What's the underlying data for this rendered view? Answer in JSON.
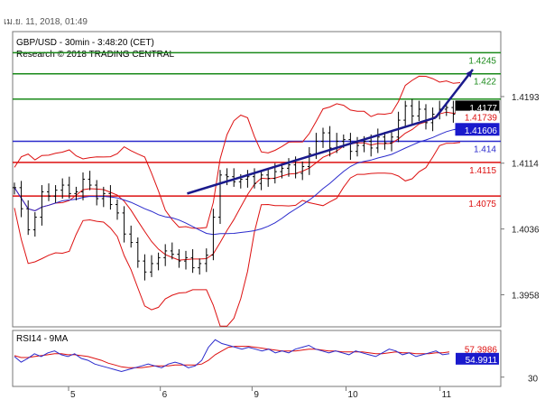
{
  "header": {
    "date_text": "เม.ย. 11, 2018, 01:49"
  },
  "chart_data": {
    "type": "line",
    "title": "GBP/USD - 30min - 3:48:20 (CET)",
    "subtitle": "Research © 2018 TRADING CENTRAL",
    "price_panel": {
      "ylim": [
        1.392,
        1.427
      ],
      "y_ticks": [
        "1.4193",
        "1.4114",
        "1.4036",
        "1.3958"
      ],
      "y_tick_values": [
        1.4193,
        1.4114,
        1.4036,
        1.3958
      ],
      "levels": [
        {
          "value": 1.4245,
          "label": "1.4245",
          "color": "#1a8a1a"
        },
        {
          "value": 1.422,
          "label": "1.422",
          "color": "#1a8a1a"
        },
        {
          "value": 1.419,
          "label": "1.419",
          "color": "#1a8a1a"
        },
        {
          "value": 1.414,
          "label": "1.414",
          "color": "#2a2acc"
        },
        {
          "value": 1.4115,
          "label": "1.4115",
          "color": "#dd1111"
        },
        {
          "value": 1.4075,
          "label": "1.4075",
          "color": "#dd1111"
        }
      ],
      "price_badges": [
        {
          "value": 1.4177,
          "label": "1.4177",
          "bg": "#000000",
          "fg": "#ffffff"
        },
        {
          "value": 1.4173,
          "label": "1.41739",
          "bg": "#ffffff",
          "fg": "#dd1111"
        },
        {
          "value": 1.416,
          "label": "1.41606",
          "bg": "#1a1acc",
          "fg": "#ffffff"
        }
      ],
      "close_series": [
        1.4085,
        1.406,
        1.4035,
        1.405,
        1.408,
        1.4075,
        1.4082,
        1.4088,
        1.4078,
        1.408,
        1.4095,
        1.4088,
        1.4072,
        1.4078,
        1.4065,
        1.4055,
        1.403,
        1.402,
        1.3998,
        1.3985,
        1.3995,
        1.4002,
        1.401,
        1.4006,
        1.3998,
        1.4002,
        1.399,
        1.3995,
        1.4005,
        1.405,
        1.41,
        1.4098,
        1.4092,
        1.4095,
        1.4098,
        1.409,
        1.41,
        1.4096,
        1.4104,
        1.4108,
        1.4112,
        1.4102,
        1.411,
        1.4125,
        1.414,
        1.415,
        1.4132,
        1.414,
        1.4142,
        1.4128,
        1.4135,
        1.414,
        1.4132,
        1.4145,
        1.4138,
        1.4145,
        1.4165,
        1.4182,
        1.417,
        1.4178,
        1.4162,
        1.4172,
        1.4178,
        1.418,
        1.4172,
        1.4177
      ],
      "trend_line": [
        [
          1.4078,
          0.39
        ],
        [
          1.4168,
          0.945
        ]
      ],
      "arrow": {
        "from": [
          0.945,
          1.4168
        ],
        "to": [
          1.0,
          1.4225
        ]
      }
    },
    "rsi_panel": {
      "label": "RSI14 - 9MA",
      "ylim": [
        20,
        80
      ],
      "y_ticks": [
        "30"
      ],
      "badges": [
        {
          "value": 57.3986,
          "label": "57.3986",
          "bg": "#ffffff",
          "fg": "#dd1111"
        },
        {
          "value": 54.9911,
          "label": "54.9911",
          "bg": "#1a1acc",
          "fg": "#ffffff"
        }
      ],
      "rsi": [
        52,
        46,
        50,
        55,
        52,
        56,
        58,
        54,
        52,
        55,
        50,
        48,
        44,
        42,
        40,
        38,
        36,
        38,
        40,
        42,
        44,
        42,
        40,
        44,
        46,
        44,
        40,
        42,
        48,
        62,
        70,
        66,
        64,
        62,
        60,
        62,
        60,
        58,
        60,
        56,
        58,
        56,
        60,
        62,
        64,
        60,
        58,
        56,
        58,
        56,
        54,
        58,
        56,
        54,
        52,
        56,
        60,
        58,
        54,
        56,
        52,
        54,
        56,
        58,
        54,
        55
      ],
      "rsi_ma": [
        53,
        51,
        51,
        52,
        53,
        54,
        55,
        55,
        54,
        54,
        53,
        52,
        50,
        48,
        45,
        43,
        41,
        40,
        40,
        40,
        41,
        42,
        42,
        42,
        43,
        43,
        43,
        43,
        44,
        48,
        54,
        58,
        62,
        63,
        63,
        63,
        62,
        61,
        60,
        59,
        58,
        58,
        58,
        59,
        60,
        60,
        59,
        58,
        58,
        57,
        57,
        57,
        57,
        56,
        55,
        55,
        56,
        57,
        56,
        56,
        55,
        55,
        55,
        56,
        56,
        57
      ]
    },
    "x_ticks": [
      "5",
      "6",
      "9",
      "10",
      "11"
    ],
    "x_tick_fracs": [
      0.125,
      0.33,
      0.535,
      0.745,
      0.955
    ]
  },
  "colors": {
    "price": "#000000",
    "bands": "#dd1111",
    "ma": "#2a2acc",
    "trend": "#1a1a8c",
    "grid": "#999999"
  }
}
